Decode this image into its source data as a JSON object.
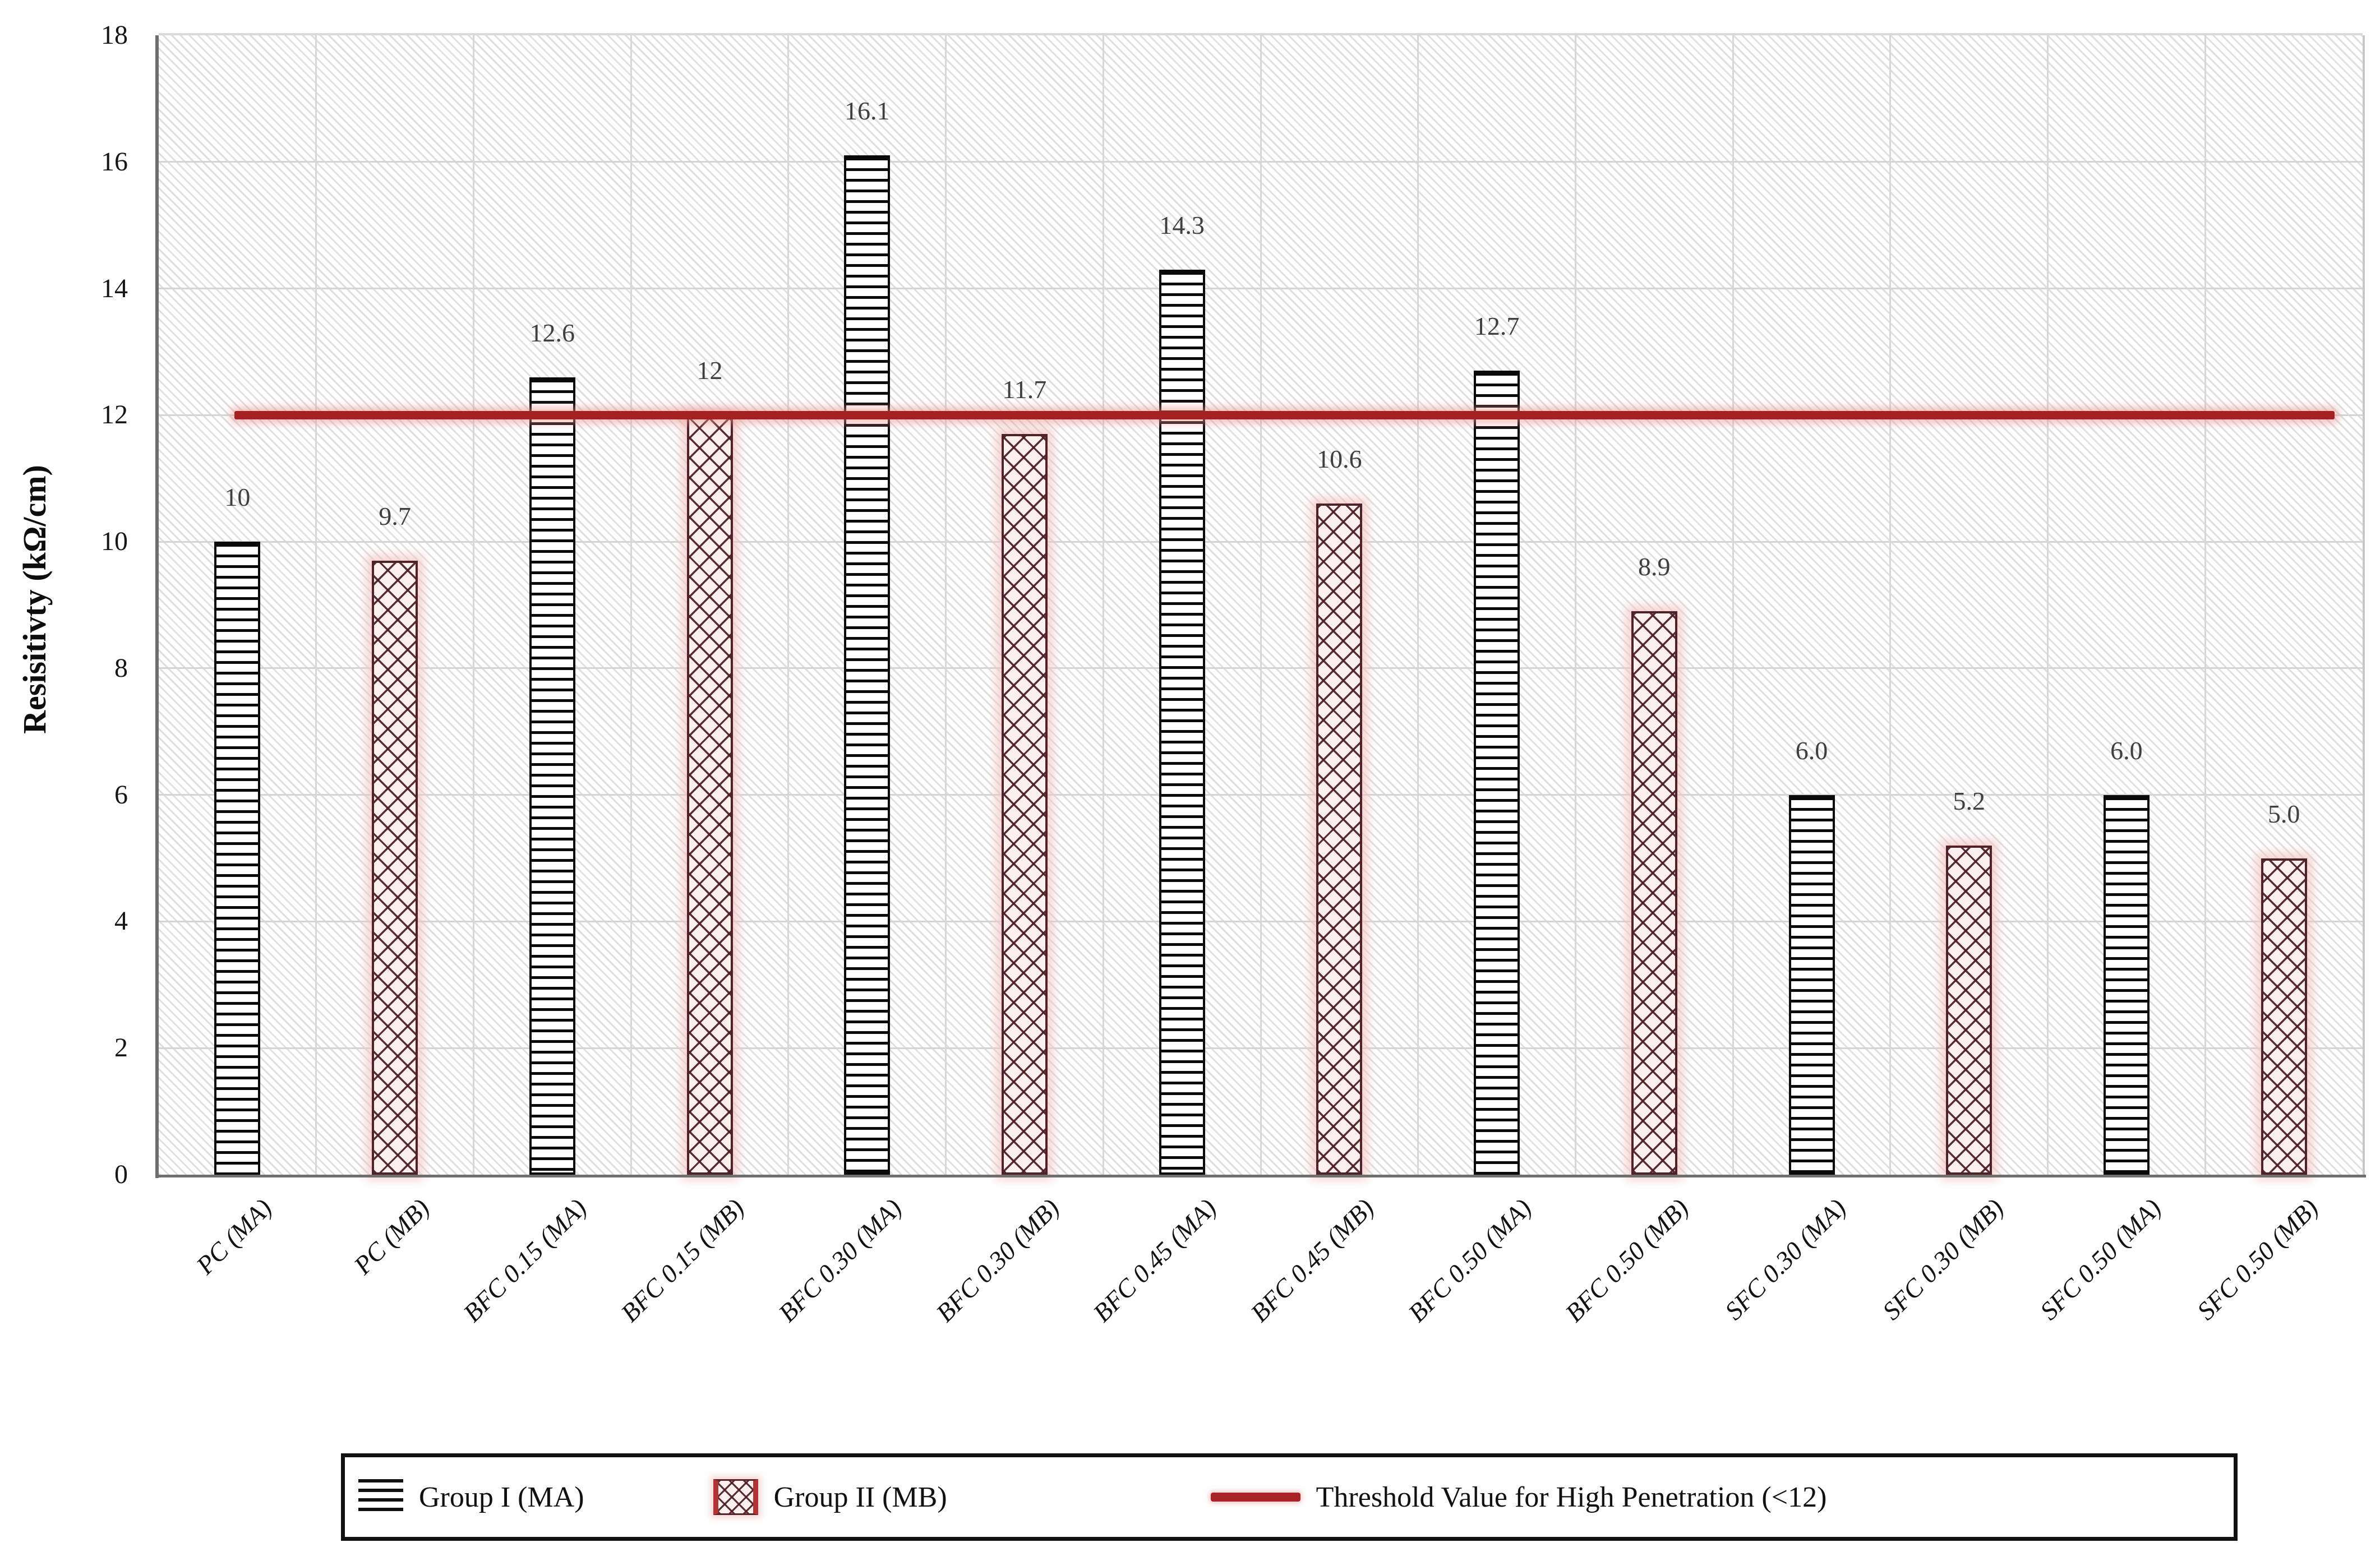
{
  "chart_data": {
    "type": "bar",
    "title": "",
    "ylabel": "Resisitivty (kΩ/cm)",
    "xlabel": "",
    "ylim": [
      0,
      18
    ],
    "yticks": [
      0,
      2,
      4,
      6,
      8,
      10,
      12,
      14,
      16,
      18
    ],
    "grid": "horizontal and vertical light gray gridlines, hatched plot background",
    "categories": [
      "PC (MA)",
      "PC (MB)",
      "BFC 0.15 (MA)",
      "BFC 0.15 (MB)",
      "BFC 0.30 (MA)",
      "BFC 0.30 (MB)",
      "BFC 0.45 (MA)",
      "BFC 0.45 (MB)",
      "BFC 0.50 (MA)",
      "BFC 0.50 (MB)",
      "SFC 0.30 (MA)",
      "SFC 0.30 (MB)",
      "SFC 0.50 (MA)",
      "SFC 0.50 (MB)"
    ],
    "values": [
      10,
      9.7,
      12.6,
      12,
      16.1,
      11.7,
      14.3,
      10.6,
      12.7,
      8.9,
      6.0,
      5.2,
      6.0,
      5.0
    ],
    "value_labels": [
      "10",
      "9.7",
      "12.6",
      "12",
      "16.1",
      "11.7",
      "14.3",
      "10.6",
      "12.7",
      "8.9",
      "6.0",
      "5.2",
      "6.0",
      "5.0"
    ],
    "series_of_bars": [
      "MA",
      "MB",
      "MA",
      "MB",
      "MA",
      "MB",
      "MA",
      "MB",
      "MA",
      "MB",
      "MA",
      "MB",
      "MA",
      "MB"
    ],
    "threshold": {
      "value": 12,
      "label": "Threshold Value for High Penetration (<12)"
    },
    "legend": {
      "position": "bottom",
      "items": [
        {
          "label": "Group I (MA)",
          "style": "ma"
        },
        {
          "label": "Group II (MB)",
          "style": "mb"
        },
        {
          "label": "Threshold Value for High Penetration (<12)",
          "style": "threshold"
        }
      ]
    }
  },
  "colors": {
    "ma_pattern": "#0a0a0a",
    "mb_pattern": "#4f2129",
    "mb_fill": "#fcf0ef",
    "mb_glow": "#f3c6c3",
    "threshold_red": "#a42122",
    "gridline": "#d4d4d4",
    "axis_gray": "#6e6e6e",
    "value_label_text": "#3f3f3f",
    "tick_text": "#161616"
  }
}
